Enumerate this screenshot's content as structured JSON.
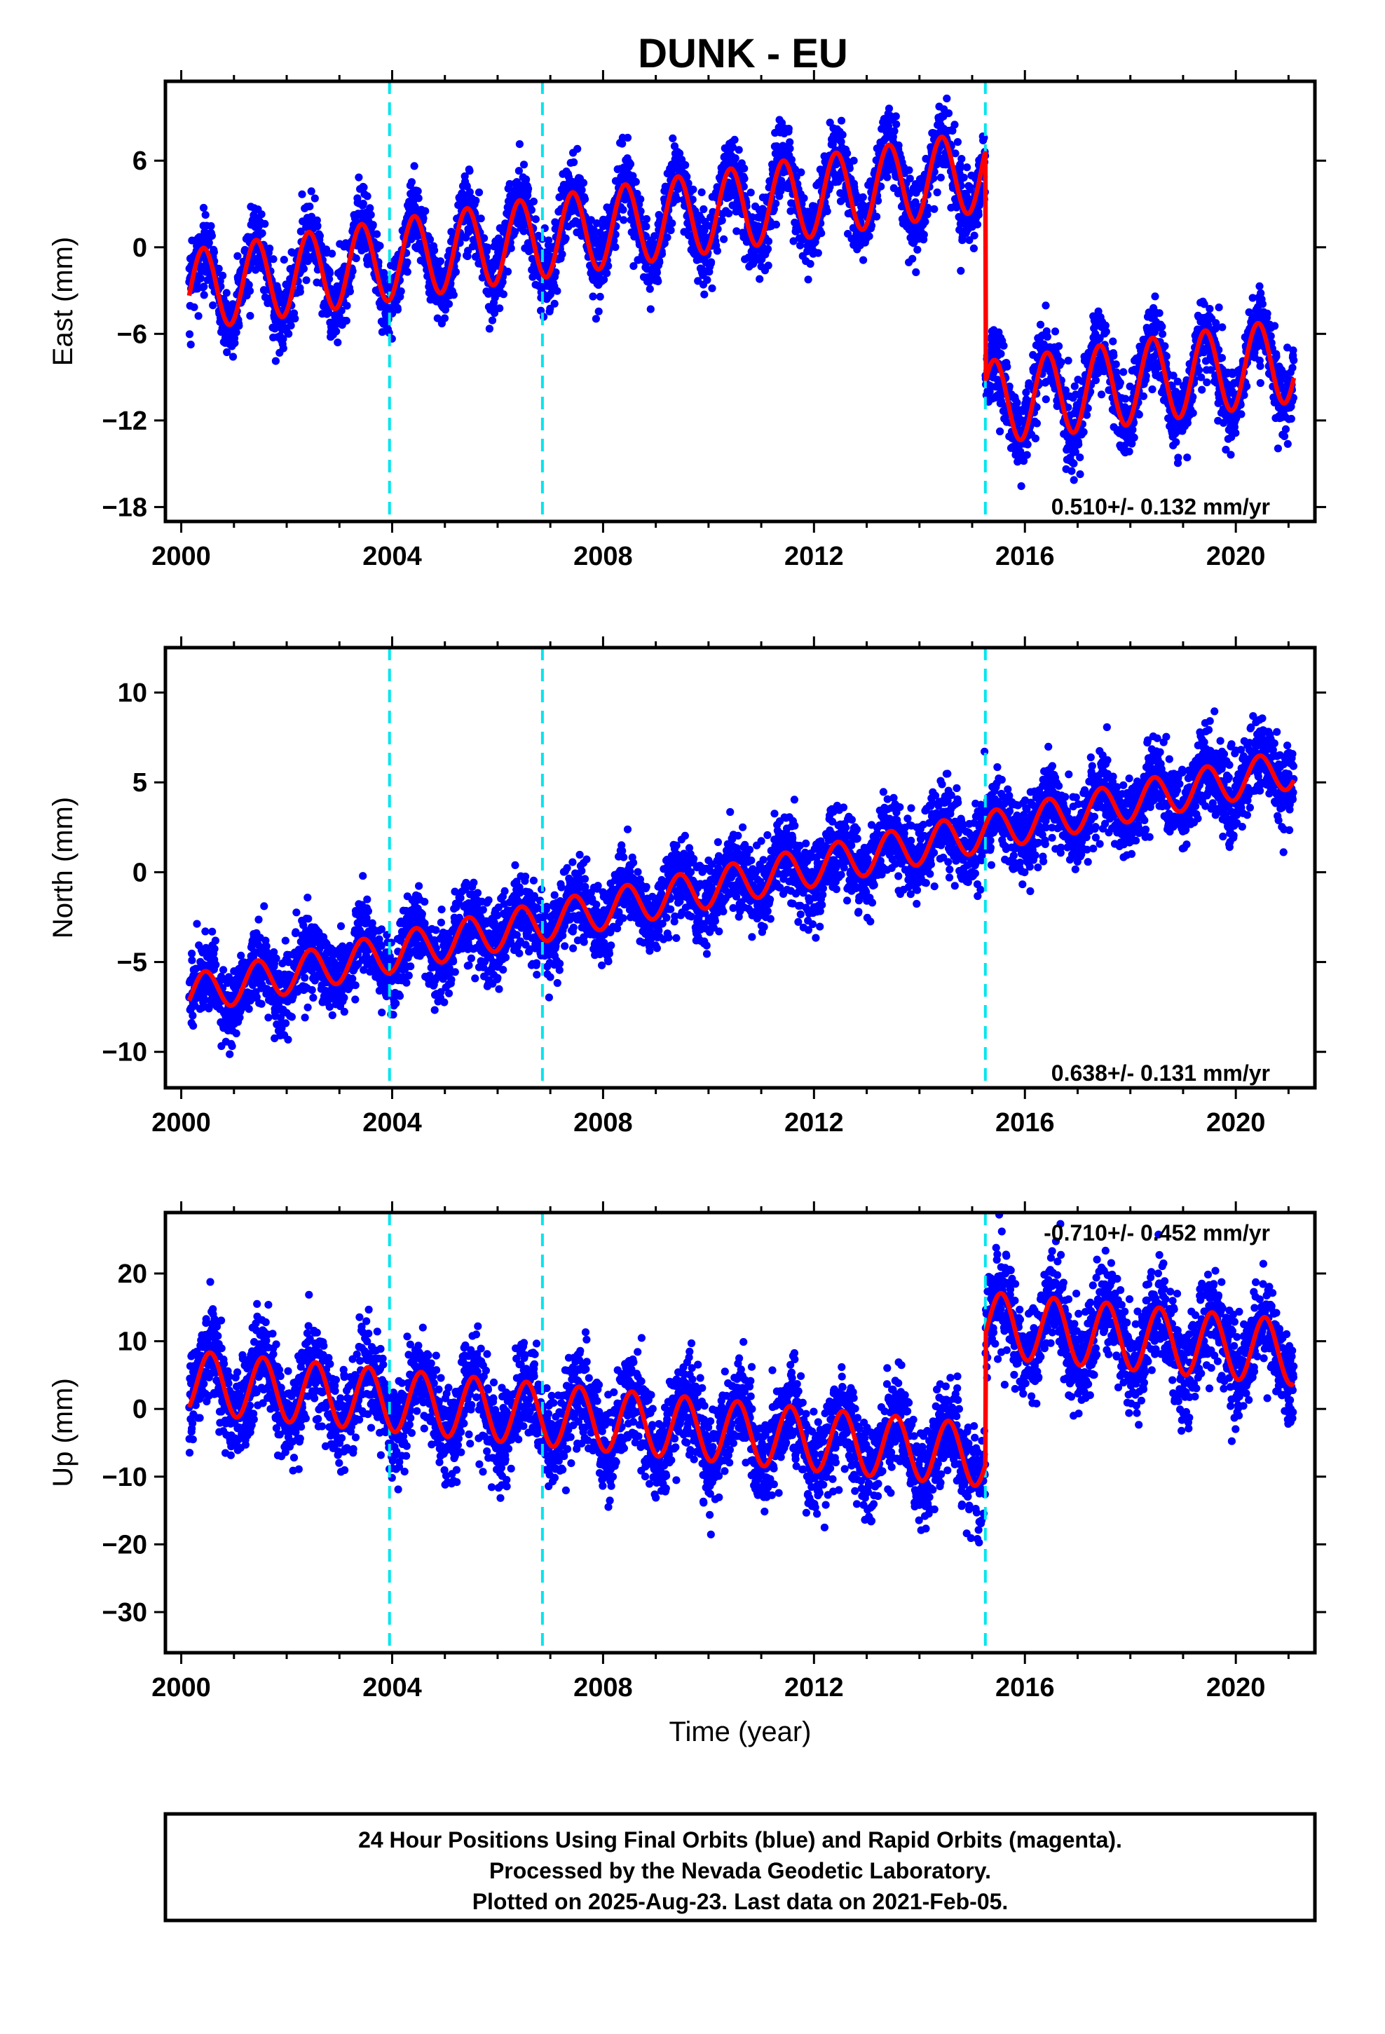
{
  "title": "DUNK - EU",
  "colors": {
    "data_points": "#0000ff",
    "model_fit": "#ff0000",
    "offset_lines": "#00e5ee",
    "frame": "#000000"
  },
  "offset_epochs": [
    2003.95,
    2006.85,
    2015.25
  ],
  "data_span": [
    2000.15,
    2021.1
  ],
  "chart_data": [
    {
      "type": "scatter",
      "component": "east",
      "ylabel": "East (mm)",
      "xlim": [
        1999.7,
        2021.5
      ],
      "ylim": [
        -19,
        11.5
      ],
      "xticks": [
        2000,
        2004,
        2008,
        2012,
        2016,
        2020
      ],
      "yticks": [
        6,
        0,
        -6,
        -12,
        -18
      ],
      "rate": "0.510+/- 0.132 mm/yr",
      "rate_position": "bottom-right",
      "grid": false,
      "model": {
        "segments": [
          {
            "start": 2000.15,
            "end": 2015.25,
            "offset": -3.0,
            "slope": 0.55,
            "amplitude": 2.8,
            "noise": 1.5
          },
          {
            "start": 2015.25,
            "end": 2021.1,
            "offset": -10.8,
            "slope": 0.51,
            "amplitude": 2.9,
            "noise": 1.5
          }
        ],
        "phase_peak": 0.42
      }
    },
    {
      "type": "scatter",
      "component": "north",
      "ylabel": "North (mm)",
      "xlim": [
        1999.7,
        2021.5
      ],
      "ylim": [
        -12,
        12.5
      ],
      "xticks": [
        2000,
        2004,
        2008,
        2012,
        2016,
        2020
      ],
      "yticks": [
        10,
        5,
        0,
        -5,
        -10
      ],
      "rate": "0.638+/- 0.131 mm/yr",
      "rate_position": "bottom-right",
      "grid": false,
      "model": {
        "segments": [
          {
            "start": 2000.15,
            "end": 2021.1,
            "offset": -6.8,
            "slope": 0.6,
            "amplitude": 1.1,
            "noise": 1.3
          }
        ],
        "phase_peak": 0.45
      }
    },
    {
      "type": "scatter",
      "component": "up",
      "ylabel": "Up (mm)",
      "xlim": [
        1999.7,
        2021.5
      ],
      "ylim": [
        -36,
        29
      ],
      "xticks": [
        2000,
        2004,
        2008,
        2012,
        2016,
        2020
      ],
      "yticks": [
        20,
        10,
        0,
        -10,
        -20,
        -30
      ],
      "xlabel": "Time (year)",
      "rate": "-0.710+/- 0.452 mm/yr",
      "rate_position": "top-right",
      "grid": false,
      "model": {
        "segments": [
          {
            "start": 2000.15,
            "end": 2015.25,
            "offset": 4.0,
            "slope": -0.72,
            "amplitude": 4.6,
            "noise": 4.2
          },
          {
            "start": 2015.25,
            "end": 2021.1,
            "offset": 12.5,
            "slope": -0.71,
            "amplitude": 4.8,
            "noise": 4.2
          }
        ],
        "phase_peak": 0.55
      }
    }
  ],
  "caption": {
    "line1": "24 Hour Positions Using Final Orbits (blue) and Rapid Orbits (magenta).",
    "line2": "Processed by the Nevada Geodetic Laboratory.",
    "line3": "Plotted on 2025-Aug-23. Last data on 2021-Feb-05."
  }
}
